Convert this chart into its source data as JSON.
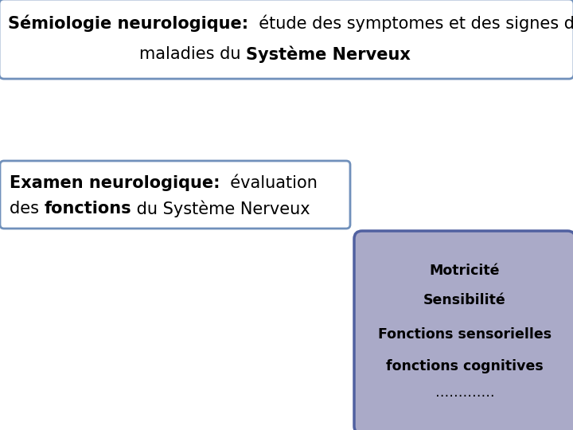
{
  "title_bold": "Sémiologie neurologique:",
  "title_rest1": "  étude des symptomes et des signes des",
  "title_rest2_normal": "maladies du ",
  "title_rest2_bold": "Système Nerveux",
  "exam_bold1": "Examen neurologique:",
  "exam_normal1": "  évaluation",
  "exam_normal2": "des ",
  "exam_bold2": "fonctions",
  "exam_normal3": " du Système Nerveux",
  "list_items": [
    "Motricité",
    "Sensibilité",
    "Fonctions sensorielles",
    "fonctions cognitives",
    "…………."
  ],
  "bg_color": "#ffffff",
  "title_box_edge": "#7090BB",
  "title_box_face": "#ffffff",
  "exam_box_edge": "#7090BB",
  "exam_box_face": "#ffffff",
  "list_box_edge": "#5060A0",
  "list_box_face": "#AAAAC8",
  "title_fontsize": 15,
  "exam_fontsize": 15,
  "list_fontsize": 12.5
}
